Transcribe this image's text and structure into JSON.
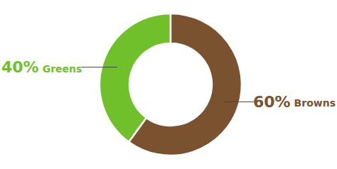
{
  "chart_data": {
    "type": "donut",
    "categories": [
      "Greens",
      "Browns"
    ],
    "values": [
      40,
      60
    ],
    "value_labels": [
      "40%",
      "60%"
    ],
    "colors": [
      "#6fc02b",
      "#7a5230"
    ],
    "data_labels": true
  }
}
